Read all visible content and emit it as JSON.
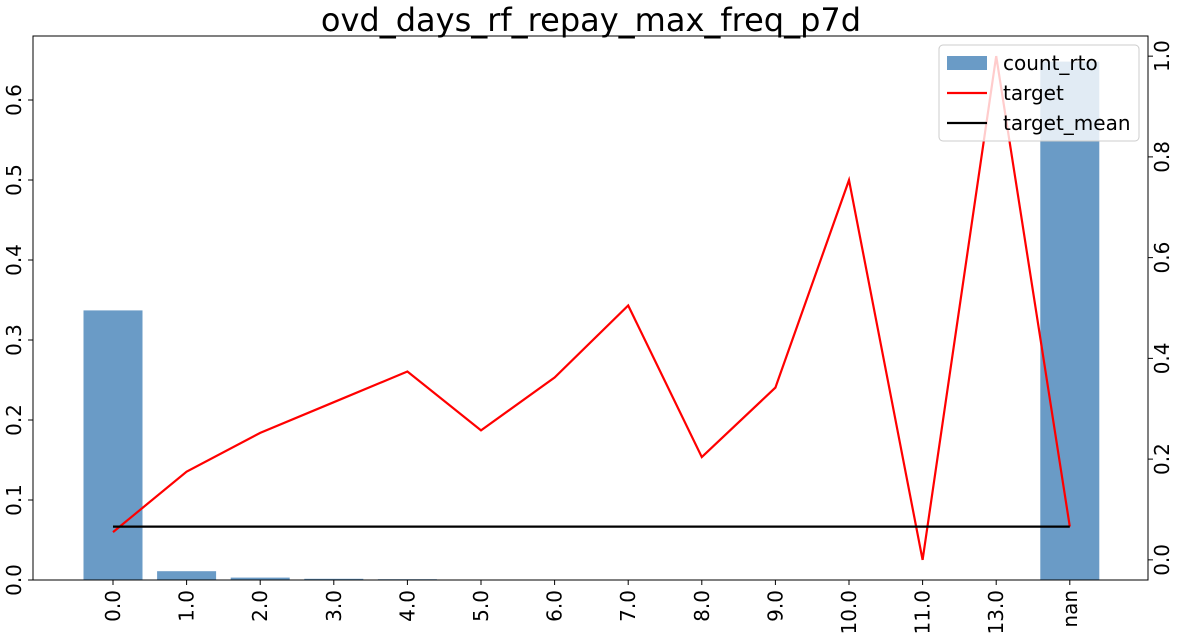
{
  "chart_data": {
    "type": "bar",
    "title": "ovd_days_rf_repay_max_freq_p7d",
    "xlabel": "",
    "ylabel": "",
    "categories": [
      "0.0",
      "1.0",
      "2.0",
      "3.0",
      "4.0",
      "5.0",
      "6.0",
      "7.0",
      "8.0",
      "9.0",
      "10.0",
      "11.0",
      "13.0",
      "nan"
    ],
    "series": [
      {
        "name": "count_rto",
        "type": "bar",
        "axis": "left",
        "color": "#6a9bc6",
        "values": [
          0.337,
          0.011,
          0.003,
          0.0015,
          0.001,
          0.0004,
          0.0003,
          0.0002,
          0.0002,
          0.0002,
          0.0001,
          0.0001,
          0.0001,
          0.648
        ]
      },
      {
        "name": "target",
        "type": "line",
        "axis": "right",
        "color": "#ff0000",
        "values": [
          0.055,
          0.175,
          0.252,
          0.313,
          0.374,
          0.257,
          0.362,
          0.505,
          0.204,
          0.342,
          0.754,
          0.0,
          1.0,
          0.066
        ]
      },
      {
        "name": "target_mean",
        "type": "line",
        "axis": "right",
        "color": "#000000",
        "values": [
          0.066,
          0.066,
          0.066,
          0.066,
          0.066,
          0.066,
          0.066,
          0.066,
          0.066,
          0.066,
          0.066,
          0.066,
          0.066,
          0.066
        ]
      }
    ],
    "left_axis": {
      "ylim": [
        0,
        0.68
      ],
      "ticks": [
        "0.0",
        "0.1",
        "0.2",
        "0.3",
        "0.4",
        "0.5",
        "0.6"
      ]
    },
    "right_axis": {
      "ylim": [
        -0.04,
        1.04
      ],
      "ticks": [
        "0.0",
        "0.2",
        "0.4",
        "0.6",
        "0.8",
        "1.0"
      ]
    },
    "grid": false,
    "legend": {
      "position": "top-right",
      "entries": [
        "count_rto",
        "target",
        "target_mean"
      ]
    }
  }
}
